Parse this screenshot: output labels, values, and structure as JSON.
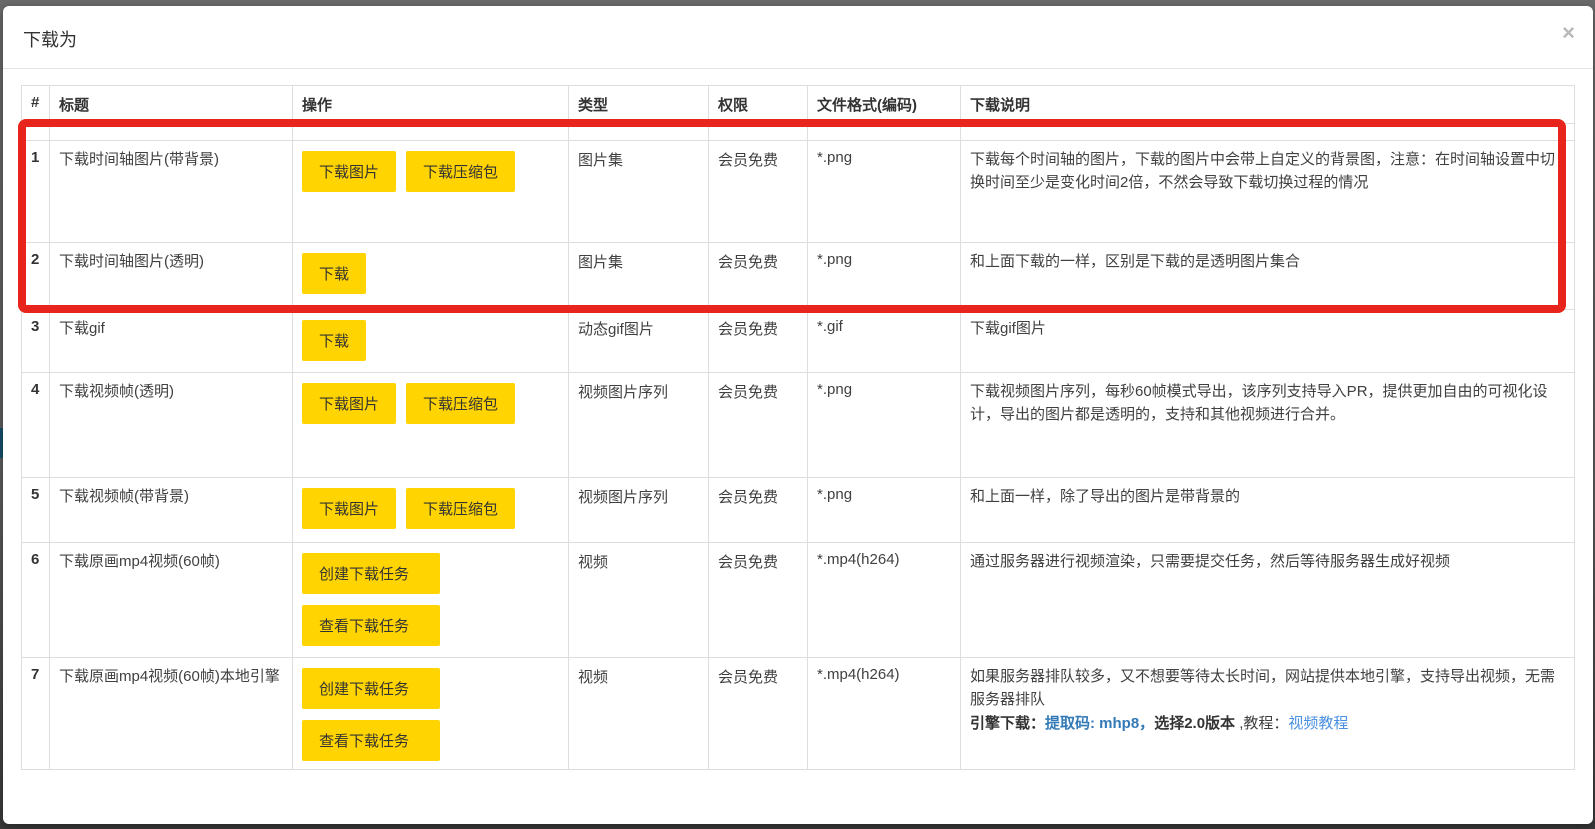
{
  "modal": {
    "title": "下载为",
    "close_icon": "×"
  },
  "annotation": {
    "highlight_color": "#e8251d",
    "highlighted_rows": [
      1,
      2
    ]
  },
  "colors": {
    "button_bg": "#ffd400",
    "link_strong": "#337ab7",
    "link": "#4a90e2",
    "table_border": "#dddddd"
  },
  "table": {
    "headers": [
      "#",
      "标题",
      "操作",
      "类型",
      "权限",
      "文件格式(编码)",
      "下载说明"
    ],
    "rows": [
      {
        "num": "1",
        "title": "下载时间轴图片(带背景)",
        "actions": [
          "下载图片",
          "下载压缩包"
        ],
        "actions_layout": "inline",
        "type": "图片集",
        "permission": "会员免费",
        "format": "*.png",
        "description": "下载每个时间轴的图片，下载的图片中会带上自定义的背景图，注意：在时间轴设置中切换时间至少是变化时间2倍，不然会导致下载切换过程的情况"
      },
      {
        "num": "2",
        "title": "下载时间轴图片(透明)",
        "actions": [
          "下载"
        ],
        "actions_layout": "inline",
        "type": "图片集",
        "permission": "会员免费",
        "format": "*.png",
        "description": "和上面下载的一样，区别是下载的是透明图片集合"
      },
      {
        "num": "3",
        "title": "下载gif",
        "actions": [
          "下载"
        ],
        "actions_layout": "inline",
        "type": "动态gif图片",
        "permission": "会员免费",
        "format": "*.gif",
        "description": "下载gif图片"
      },
      {
        "num": "4",
        "title": "下载视频帧(透明)",
        "actions": [
          "下载图片",
          "下载压缩包"
        ],
        "actions_layout": "inline",
        "type": "视频图片序列",
        "permission": "会员免费",
        "format": "*.png",
        "description": "下载视频图片序列，每秒60帧模式导出，该序列支持导入PR，提供更加自由的可视化设计，导出的图片都是透明的，支持和其他视频进行合并。"
      },
      {
        "num": "5",
        "title": "下载视频帧(带背景)",
        "actions": [
          "下载图片",
          "下载压缩包"
        ],
        "actions_layout": "inline",
        "type": "视频图片序列",
        "permission": "会员免费",
        "format": "*.png",
        "description": "和上面一样，除了导出的图片是带背景的"
      },
      {
        "num": "6",
        "title": "下载原画mp4视频(60帧)",
        "actions": [
          "创建下载任务",
          "查看下载任务"
        ],
        "actions_layout": "stacked",
        "type": "视频",
        "permission": "会员免费",
        "format": "*.mp4(h264)",
        "description": "通过服务器进行视频渲染，只需要提交任务，然后等待服务器生成好视频"
      },
      {
        "num": "7",
        "title": "下载原画mp4视频(60帧)本地引擎",
        "actions": [
          "创建下载任务",
          "查看下载任务"
        ],
        "actions_layout": "stacked",
        "type": "视频",
        "permission": "会员免费",
        "format": "*.mp4(h264)",
        "description": "如果服务器排队较多，又不想要等待太长时间，网站提供本地引擎，支持导出视频，无需服务器排队",
        "engine_line": {
          "label": "引擎下载：",
          "code_link": "提取码: mhp8，",
          "version": "选择2.0版本",
          "tutorial_label": " ,教程：",
          "tutorial_link": "视频教程"
        }
      }
    ]
  }
}
